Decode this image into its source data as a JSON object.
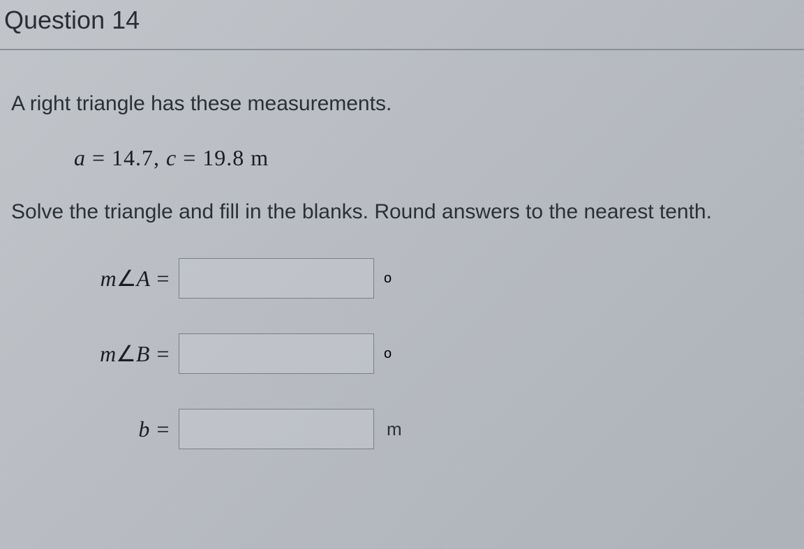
{
  "header": {
    "title": "Question 14"
  },
  "problem": {
    "intro": "A right triangle has these measurements.",
    "given_a_var": "a",
    "given_a_eq": " = ",
    "given_a_val": "14.7",
    "given_sep": ", ",
    "given_c_var": "c",
    "given_c_eq": " = ",
    "given_c_val": "19.8",
    "given_c_unit": " m",
    "instruction": "Solve the triangle and fill in the blanks. Round answers to the nearest tenth."
  },
  "answers": {
    "angleA": {
      "label_prefix": "m",
      "label_angle": "∠",
      "label_var": "A",
      "label_eq": " =",
      "value": "",
      "unit": "o"
    },
    "angleB": {
      "label_prefix": "m",
      "label_angle": "∠",
      "label_var": "B",
      "label_eq": " =",
      "value": "",
      "unit": "o"
    },
    "sideB": {
      "label_var": "b",
      "label_eq": " =",
      "value": "",
      "unit": "m"
    }
  },
  "colors": {
    "background_start": "#c2c6cb",
    "background_end": "#aeb3ba",
    "text_primary": "#2a2e34",
    "text_body": "#2a3038",
    "text_math": "#1a1e24",
    "border_input": "#7a8088",
    "divider": "#8a9099"
  }
}
